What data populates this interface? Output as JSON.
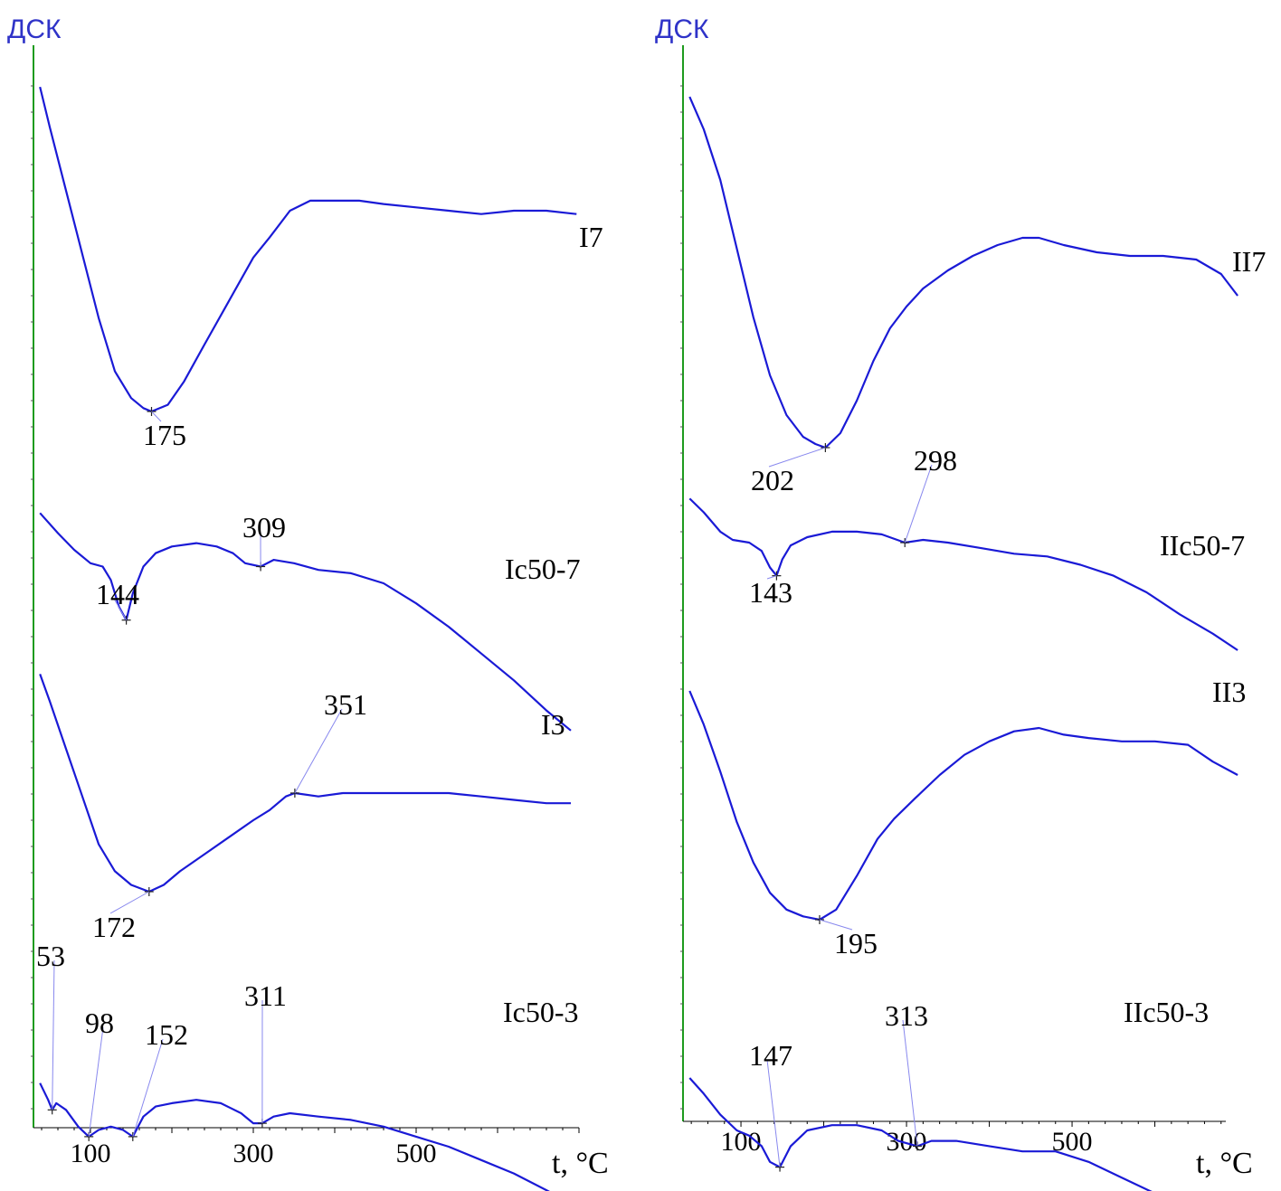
{
  "colors": {
    "curve": "#1a1ad6",
    "axis": "#1e9b1e",
    "text": "#000000",
    "leader": "#8888ee"
  },
  "chart_data": [
    {
      "type": "line",
      "ylabel": "ДСК",
      "xlabel": "t, °C",
      "xlim": [
        30,
        700
      ],
      "xticks": [
        100,
        300,
        500
      ],
      "xtick_labels": [
        "100",
        "300",
        "500"
      ],
      "y_ticks_shown": false,
      "grid": false,
      "series": [
        {
          "name": "I7",
          "points": [
            [
              38,
              0.97
            ],
            [
              50,
              0.85
            ],
            [
              70,
              0.66
            ],
            [
              90,
              0.47
            ],
            [
              110,
              0.28
            ],
            [
              130,
              0.12
            ],
            [
              150,
              0.04
            ],
            [
              165,
              0.01
            ],
            [
              175,
              0.0
            ],
            [
              195,
              0.02
            ],
            [
              215,
              0.09
            ],
            [
              240,
              0.2
            ],
            [
              270,
              0.33
            ],
            [
              300,
              0.46
            ],
            [
              320,
              0.52
            ],
            [
              345,
              0.6
            ],
            [
              370,
              0.63
            ],
            [
              400,
              0.63
            ],
            [
              430,
              0.63
            ],
            [
              460,
              0.62
            ],
            [
              500,
              0.61
            ],
            [
              540,
              0.6
            ],
            [
              580,
              0.59
            ],
            [
              620,
              0.6
            ],
            [
              660,
              0.6
            ],
            [
              697,
              0.59
            ]
          ],
          "peaks": [
            {
              "t": 175,
              "label": "175"
            }
          ]
        },
        {
          "name": "Ic50-7",
          "points": [
            [
              38,
              0.71
            ],
            [
              60,
              0.65
            ],
            [
              80,
              0.6
            ],
            [
              100,
              0.56
            ],
            [
              115,
              0.55
            ],
            [
              125,
              0.51
            ],
            [
              135,
              0.43
            ],
            [
              144,
              0.39
            ],
            [
              152,
              0.47
            ],
            [
              165,
              0.55
            ],
            [
              180,
              0.59
            ],
            [
              200,
              0.61
            ],
            [
              230,
              0.62
            ],
            [
              255,
              0.61
            ],
            [
              275,
              0.59
            ],
            [
              290,
              0.56
            ],
            [
              309,
              0.55
            ],
            [
              325,
              0.57
            ],
            [
              350,
              0.56
            ],
            [
              380,
              0.54
            ],
            [
              420,
              0.53
            ],
            [
              460,
              0.5
            ],
            [
              500,
              0.44
            ],
            [
              540,
              0.37
            ],
            [
              580,
              0.29
            ],
            [
              620,
              0.21
            ],
            [
              660,
              0.12
            ],
            [
              690,
              0.06
            ]
          ],
          "peaks": [
            {
              "t": 144,
              "label": "144"
            },
            {
              "t": 309,
              "label": "309"
            }
          ]
        },
        {
          "name": "I3",
          "points": [
            [
              38,
              0.64
            ],
            [
              50,
              0.56
            ],
            [
              70,
              0.42
            ],
            [
              90,
              0.28
            ],
            [
              110,
              0.14
            ],
            [
              130,
              0.06
            ],
            [
              150,
              0.02
            ],
            [
              172,
              0.0
            ],
            [
              190,
              0.02
            ],
            [
              210,
              0.06
            ],
            [
              240,
              0.11
            ],
            [
              270,
              0.16
            ],
            [
              300,
              0.21
            ],
            [
              320,
              0.24
            ],
            [
              340,
              0.28
            ],
            [
              351,
              0.29
            ],
            [
              380,
              0.28
            ],
            [
              410,
              0.29
            ],
            [
              450,
              0.29
            ],
            [
              500,
              0.29
            ],
            [
              540,
              0.29
            ],
            [
              580,
              0.28
            ],
            [
              620,
              0.27
            ],
            [
              660,
              0.26
            ],
            [
              690,
              0.26
            ]
          ],
          "peaks": [
            {
              "t": 172,
              "label": "172"
            },
            {
              "t": 351,
              "label": "351"
            }
          ]
        },
        {
          "name": "Ic50-3",
          "points": [
            [
              38,
              0.29
            ],
            [
              48,
              0.24
            ],
            [
              53,
              0.21
            ],
            [
              58,
              0.23
            ],
            [
              70,
              0.21
            ],
            [
              85,
              0.16
            ],
            [
              98,
              0.13
            ],
            [
              110,
              0.15
            ],
            [
              125,
              0.16
            ],
            [
              140,
              0.15
            ],
            [
              152,
              0.13
            ],
            [
              165,
              0.19
            ],
            [
              180,
              0.22
            ],
            [
              200,
              0.23
            ],
            [
              230,
              0.24
            ],
            [
              260,
              0.23
            ],
            [
              285,
              0.2
            ],
            [
              300,
              0.17
            ],
            [
              311,
              0.17
            ],
            [
              325,
              0.19
            ],
            [
              345,
              0.2
            ],
            [
              380,
              0.19
            ],
            [
              420,
              0.18
            ],
            [
              460,
              0.16
            ],
            [
              500,
              0.13
            ],
            [
              540,
              0.1
            ],
            [
              580,
              0.06
            ],
            [
              620,
              0.02
            ],
            [
              660,
              -0.03
            ],
            [
              690,
              -0.07
            ]
          ],
          "peaks": [
            {
              "t": 53,
              "label": "53"
            },
            {
              "t": 98,
              "label": "98"
            },
            {
              "t": 152,
              "label": "152"
            },
            {
              "t": 311,
              "label": "311"
            }
          ]
        }
      ]
    },
    {
      "type": "line",
      "ylabel": "ДСК",
      "xlabel": "t, °C",
      "xlim": [
        30,
        700
      ],
      "xticks": [
        100,
        300,
        500
      ],
      "xtick_labels": [
        "100",
        "300",
        "500"
      ],
      "y_ticks_shown": false,
      "grid": false,
      "series": [
        {
          "name": "II7",
          "points": [
            [
              38,
              0.97
            ],
            [
              55,
              0.88
            ],
            [
              75,
              0.74
            ],
            [
              95,
              0.55
            ],
            [
              115,
              0.36
            ],
            [
              135,
              0.2
            ],
            [
              155,
              0.09
            ],
            [
              175,
              0.03
            ],
            [
              190,
              0.01
            ],
            [
              202,
              0.0
            ],
            [
              220,
              0.04
            ],
            [
              240,
              0.13
            ],
            [
              260,
              0.24
            ],
            [
              280,
              0.33
            ],
            [
              300,
              0.39
            ],
            [
              320,
              0.44
            ],
            [
              350,
              0.49
            ],
            [
              380,
              0.53
            ],
            [
              410,
              0.56
            ],
            [
              440,
              0.58
            ],
            [
              460,
              0.58
            ],
            [
              490,
              0.56
            ],
            [
              530,
              0.54
            ],
            [
              570,
              0.53
            ],
            [
              610,
              0.53
            ],
            [
              650,
              0.52
            ],
            [
              680,
              0.48
            ],
            [
              700,
              0.42
            ]
          ],
          "peaks": [
            {
              "t": 202,
              "label": "202"
            }
          ]
        },
        {
          "name": "IIc50-7",
          "points": [
            [
              38,
              0.75
            ],
            [
              55,
              0.7
            ],
            [
              75,
              0.63
            ],
            [
              90,
              0.6
            ],
            [
              110,
              0.59
            ],
            [
              125,
              0.56
            ],
            [
              135,
              0.5
            ],
            [
              143,
              0.47
            ],
            [
              150,
              0.53
            ],
            [
              160,
              0.58
            ],
            [
              180,
              0.61
            ],
            [
              210,
              0.63
            ],
            [
              240,
              0.63
            ],
            [
              270,
              0.62
            ],
            [
              298,
              0.59
            ],
            [
              320,
              0.6
            ],
            [
              350,
              0.59
            ],
            [
              390,
              0.57
            ],
            [
              430,
              0.55
            ],
            [
              470,
              0.54
            ],
            [
              510,
              0.51
            ],
            [
              550,
              0.47
            ],
            [
              590,
              0.41
            ],
            [
              630,
              0.33
            ],
            [
              670,
              0.26
            ],
            [
              700,
              0.2
            ]
          ],
          "peaks": [
            {
              "t": 143,
              "label": "143"
            },
            {
              "t": 298,
              "label": "298"
            }
          ]
        },
        {
          "name": "II3",
          "points": [
            [
              38,
              0.68
            ],
            [
              55,
              0.58
            ],
            [
              75,
              0.44
            ],
            [
              95,
              0.29
            ],
            [
              115,
              0.17
            ],
            [
              135,
              0.08
            ],
            [
              155,
              0.03
            ],
            [
              175,
              0.01
            ],
            [
              195,
              0.0
            ],
            [
              215,
              0.03
            ],
            [
              240,
              0.13
            ],
            [
              265,
              0.24
            ],
            [
              285,
              0.3
            ],
            [
              310,
              0.36
            ],
            [
              340,
              0.43
            ],
            [
              370,
              0.49
            ],
            [
              400,
              0.53
            ],
            [
              430,
              0.56
            ],
            [
              460,
              0.57
            ],
            [
              490,
              0.55
            ],
            [
              520,
              0.54
            ],
            [
              560,
              0.53
            ],
            [
              600,
              0.53
            ],
            [
              640,
              0.52
            ],
            [
              670,
              0.47
            ],
            [
              700,
              0.43
            ]
          ],
          "peaks": [
            {
              "t": 195,
              "label": "195"
            }
          ]
        },
        {
          "name": "IIc50-3",
          "points": [
            [
              38,
              0.35
            ],
            [
              55,
              0.32
            ],
            [
              75,
              0.28
            ],
            [
              95,
              0.25
            ],
            [
              110,
              0.24
            ],
            [
              125,
              0.22
            ],
            [
              135,
              0.19
            ],
            [
              147,
              0.18
            ],
            [
              160,
              0.22
            ],
            [
              180,
              0.25
            ],
            [
              210,
              0.26
            ],
            [
              240,
              0.26
            ],
            [
              270,
              0.25
            ],
            [
              290,
              0.23
            ],
            [
              313,
              0.22
            ],
            [
              330,
              0.23
            ],
            [
              360,
              0.23
            ],
            [
              400,
              0.22
            ],
            [
              440,
              0.21
            ],
            [
              480,
              0.21
            ],
            [
              520,
              0.19
            ],
            [
              560,
              0.16
            ],
            [
              600,
              0.13
            ],
            [
              640,
              0.09
            ],
            [
              670,
              0.05
            ]
          ],
          "peaks": [
            {
              "t": 147,
              "label": "147"
            },
            {
              "t": 313,
              "label": "313"
            }
          ]
        }
      ]
    }
  ]
}
